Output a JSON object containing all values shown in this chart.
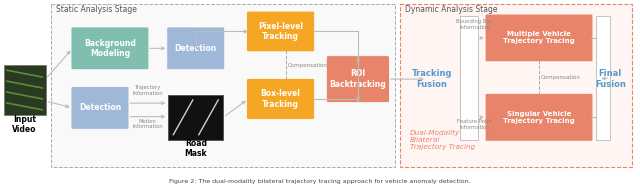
{
  "fig_width": 6.4,
  "fig_height": 1.89,
  "dpi": 100,
  "bg_color": "#ffffff",
  "colors": {
    "green_box": "#80bfb0",
    "blue_box": "#a0b8d8",
    "orange_box": "#f5a623",
    "red_box": "#e8846a",
    "arrow_color": "#bbbbbb",
    "tracking_fusion_text": "#5599cc",
    "final_fusion_text": "#5599cc",
    "dual_modality_text": "#e8846a",
    "static_border": "#aaaaaa",
    "dynamic_border": "#e8846a",
    "static_fill": "#f9f9f9",
    "dynamic_fill": "#fff6f4"
  },
  "caption": "Figure 2: The dual-modality bilateral trajectory tracing approach for vehicle anomaly detection.",
  "static_stage_label": "Static Analysis Stage",
  "dynamic_stage_label": "Dynamic Analysis Stage"
}
